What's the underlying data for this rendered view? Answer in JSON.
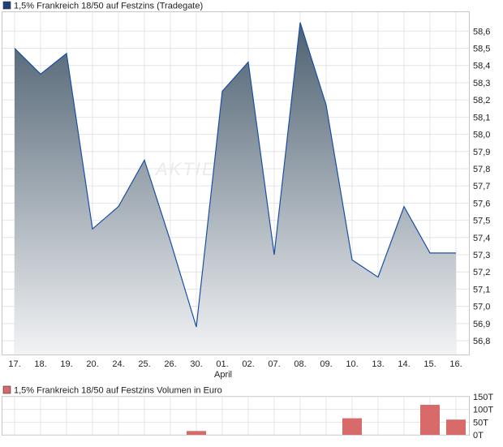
{
  "chart_data": [
    {
      "type": "area",
      "title": "1,5% Frankreich 18/50 auf Festzins (Tradegate)",
      "legend_color": "#1f3f77",
      "line_color": "#1a4fa6",
      "fill_top_color": "#4d6070",
      "fill_bottom_color": "#f2f3f5",
      "grid": true,
      "watermark": "AKTIEN",
      "x": [
        "17.",
        "18.",
        "19.",
        "20.",
        "24.",
        "25.",
        "26.",
        "30.",
        "01.",
        "02.",
        "07.",
        "08.",
        "09.",
        "10.",
        "13.",
        "14.",
        "15.",
        "16."
      ],
      "x_sublabel": "April",
      "values": [
        58.5,
        58.35,
        58.47,
        57.45,
        57.58,
        57.85,
        57.38,
        56.88,
        58.25,
        58.42,
        57.3,
        58.65,
        58.17,
        57.27,
        57.17,
        57.58,
        57.31,
        57.31
      ],
      "ylim": [
        56.72,
        58.71
      ],
      "yticks": [
        "58,6",
        "58,5",
        "58,4",
        "58,3",
        "58,2",
        "58,1",
        "58,0",
        "57,9",
        "57,8",
        "57,7",
        "57,6",
        "57,5",
        "57,4",
        "57,3",
        "57,2",
        "57,1",
        "57,0",
        "56,9",
        "56,8"
      ],
      "ytick_values": [
        58.6,
        58.5,
        58.4,
        58.3,
        58.2,
        58.1,
        58.0,
        57.9,
        57.8,
        57.7,
        57.6,
        57.5,
        57.4,
        57.3,
        57.2,
        57.1,
        57.0,
        56.9,
        56.8
      ]
    },
    {
      "type": "bar",
      "title": "1,5% Frankreich 18/50 auf Festzins Volumen in Euro",
      "legend_color": "#d96a6a",
      "bar_color": "#d96a6a",
      "grid": true,
      "categories": [
        "17.",
        "18.",
        "19.",
        "20.",
        "24.",
        "25.",
        "26.",
        "30.",
        "01.",
        "02.",
        "07.",
        "08.",
        "09.",
        "10.",
        "13.",
        "14.",
        "15.",
        "16."
      ],
      "values": [
        0,
        0,
        0,
        0,
        0,
        0,
        0,
        15,
        0,
        0,
        0,
        0,
        0,
        65,
        0,
        0,
        118,
        60
      ],
      "ylim": [
        0,
        150
      ],
      "yticks": [
        "150T",
        "100T",
        "50T",
        "0T"
      ],
      "ytick_values": [
        150,
        100,
        50,
        0
      ]
    }
  ]
}
